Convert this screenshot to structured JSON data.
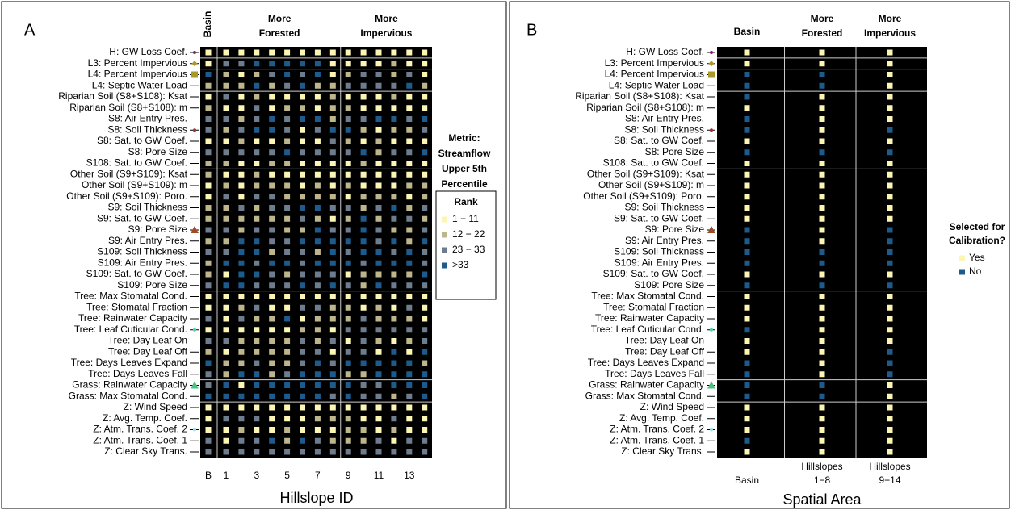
{
  "chart_data": [
    {
      "type": "heatmap",
      "panel": "A",
      "column_headers": [
        [
          "Basin"
        ],
        [
          "More",
          "Forested"
        ],
        [
          "More",
          "Impervious"
        ]
      ],
      "rows": [
        "H: GW Loss Coef.",
        "L3: Percent Impervious",
        "L4: Percent Impervious",
        "L4: Septic Water Load",
        "Riparian Soil (S8+S108): Ksat",
        "Riparian Soil (S8+S108): m",
        "S8: Air Entry Pres.",
        "S8: Soil Thickness",
        "S8: Sat. to GW Coef.",
        "S8: Pore Size",
        "S108: Sat. to GW Coef.",
        "Other Soil (S9+S109): Ksat",
        "Other Soil (S9+S109): m",
        "Other Soil (S9+S109): Poro.",
        "S9: Soil Thickness",
        "S9: Sat. to GW Coef.",
        "S9: Pore Size",
        "S9: Air Entry Pres.",
        "S109: Soil Thickness",
        "S109: Air Entry Pres.",
        "S109: Sat. to GW Coef.",
        "S109: Pore Size",
        "Tree: Max Stomatal Cond.",
        "Tree: Stomatal Fraction",
        "Tree: Rainwater Capacity",
        "Tree: Leaf Cuticular Cond.",
        "Tree: Day Leaf On",
        "Tree: Day Leaf Off",
        "Tree: Days Leaves Expand",
        "Tree: Days Leaves Fall",
        "Grass: Rainwater Capacity",
        "Grass: Max Stomatal Cond.",
        "Z: Wind Speed",
        "Z: Avg. Temp. Coef.",
        "Z: Atm. Trans. Coef. 2",
        "Z: Atm. Trans. Coef. 1",
        "Z: Clear Sky Trans."
      ],
      "categories": [
        [
          "B"
        ],
        [
          "1"
        ],
        null,
        [
          "3"
        ],
        null,
        [
          "5"
        ],
        null,
        [
          "7"
        ],
        null,
        [
          "9"
        ],
        null,
        [
          "11"
        ],
        null,
        [
          "13"
        ],
        null
      ],
      "x_label": "Hillslope ID",
      "legend_title": [
        "Metric:",
        "Streamflow",
        "Upper 5th",
        "Percentile"
      ],
      "legend_subtitle": "Rank",
      "classes": [
        {
          "name": "1 − 11",
          "color": "#fcf6b4"
        },
        {
          "name": "12 − 22",
          "color": "#bdb68c"
        },
        {
          "name": "23 − 33",
          "color": "#6d7d8e"
        },
        {
          "name": ">33",
          "color": "#1c5b8c"
        }
      ],
      "cells": [
        [
          0,
          0,
          0,
          0,
          0,
          0,
          0,
          0,
          0,
          0,
          0,
          0,
          0,
          0,
          0
        ],
        [
          0,
          2,
          2,
          3,
          3,
          3,
          3,
          3,
          0,
          0,
          0,
          0,
          1,
          0,
          0
        ],
        [
          3,
          1,
          0,
          1,
          2,
          3,
          2,
          3,
          0,
          1,
          2,
          2,
          1,
          2,
          0
        ],
        [
          1,
          1,
          1,
          3,
          1,
          2,
          3,
          1,
          1,
          2,
          2,
          2,
          2,
          3,
          1
        ],
        [
          0,
          2,
          0,
          1,
          0,
          0,
          0,
          0,
          1,
          0,
          0,
          0,
          1,
          0,
          0
        ],
        [
          1,
          0,
          0,
          2,
          0,
          1,
          1,
          0,
          1,
          1,
          0,
          0,
          0,
          0,
          0
        ],
        [
          2,
          2,
          1,
          2,
          3,
          2,
          3,
          3,
          1,
          2,
          2,
          3,
          3,
          2,
          3
        ],
        [
          2,
          1,
          2,
          3,
          3,
          2,
          0,
          2,
          3,
          3,
          1,
          0,
          1,
          1,
          2
        ],
        [
          0,
          0,
          1,
          0,
          0,
          1,
          0,
          0,
          2,
          1,
          0,
          1,
          0,
          0,
          0
        ],
        [
          2,
          2,
          2,
          2,
          2,
          3,
          2,
          2,
          2,
          2,
          3,
          1,
          2,
          2,
          3
        ],
        [
          1,
          1,
          0,
          0,
          1,
          1,
          0,
          0,
          0,
          0,
          1,
          0,
          0,
          0,
          0
        ],
        [
          1,
          0,
          0,
          1,
          0,
          0,
          0,
          0,
          0,
          0,
          0,
          0,
          0,
          0,
          0
        ],
        [
          0,
          1,
          0,
          1,
          1,
          1,
          0,
          1,
          0,
          1,
          0,
          0,
          0,
          1,
          1
        ],
        [
          0,
          2,
          0,
          2,
          2,
          1,
          1,
          1,
          1,
          0,
          1,
          1,
          1,
          0,
          1
        ],
        [
          1,
          1,
          2,
          1,
          2,
          2,
          3,
          3,
          2,
          2,
          1,
          2,
          3,
          1,
          2
        ],
        [
          1,
          1,
          1,
          1,
          1,
          1,
          2,
          1,
          0,
          1,
          3,
          1,
          2,
          2,
          1
        ],
        [
          2,
          2,
          1,
          2,
          2,
          1,
          1,
          3,
          2,
          2,
          3,
          2,
          1,
          1,
          2
        ],
        [
          1,
          1,
          3,
          3,
          2,
          2,
          3,
          3,
          3,
          3,
          3,
          2,
          3,
          1,
          3
        ],
        [
          2,
          2,
          3,
          3,
          1,
          2,
          2,
          1,
          3,
          2,
          3,
          3,
          2,
          3,
          2
        ],
        [
          1,
          3,
          3,
          2,
          3,
          3,
          2,
          3,
          3,
          3,
          2,
          3,
          3,
          3,
          2
        ],
        [
          1,
          0,
          3,
          3,
          2,
          1,
          2,
          2,
          2,
          0,
          1,
          1,
          1,
          1,
          3
        ],
        [
          2,
          3,
          3,
          2,
          2,
          2,
          3,
          2,
          3,
          2,
          1,
          3,
          2,
          2,
          2
        ],
        [
          0,
          0,
          0,
          0,
          0,
          0,
          0,
          0,
          0,
          0,
          0,
          0,
          0,
          0,
          0
        ],
        [
          0,
          0,
          1,
          2,
          0,
          0,
          2,
          2,
          1,
          1,
          0,
          1,
          0,
          2,
          0
        ],
        [
          2,
          0,
          2,
          1,
          1,
          3,
          0,
          1,
          1,
          1,
          2,
          1,
          1,
          1,
          0
        ],
        [
          0,
          0,
          0,
          0,
          0,
          0,
          1,
          1,
          0,
          2,
          2,
          2,
          2,
          2,
          2
        ],
        [
          2,
          2,
          1,
          1,
          1,
          1,
          2,
          1,
          2,
          0,
          2,
          1,
          0,
          1,
          2
        ],
        [
          1,
          0,
          1,
          1,
          1,
          1,
          2,
          2,
          0,
          2,
          2,
          0,
          3,
          0,
          3
        ],
        [
          3,
          1,
          1,
          2,
          1,
          1,
          2,
          3,
          2,
          3,
          3,
          3,
          3,
          3,
          1
        ],
        [
          2,
          1,
          3,
          3,
          1,
          2,
          3,
          3,
          3,
          1,
          1,
          3,
          3,
          3,
          3
        ],
        [
          2,
          3,
          0,
          3,
          3,
          3,
          3,
          3,
          3,
          3,
          2,
          2,
          3,
          3,
          3
        ],
        [
          3,
          3,
          3,
          3,
          3,
          3,
          3,
          3,
          2,
          3,
          2,
          2,
          1,
          2,
          3
        ],
        [
          0,
          0,
          0,
          0,
          0,
          0,
          0,
          0,
          0,
          0,
          0,
          0,
          0,
          0,
          0
        ],
        [
          0,
          2,
          2,
          2,
          0,
          0,
          0,
          1,
          1,
          1,
          0,
          0,
          2,
          0,
          0
        ],
        [
          0,
          0,
          1,
          0,
          0,
          1,
          0,
          0,
          0,
          1,
          1,
          0,
          1,
          0,
          0
        ],
        [
          2,
          0,
          2,
          2,
          3,
          1,
          3,
          2,
          1,
          1,
          1,
          2,
          0,
          2,
          2
        ],
        [
          2,
          2,
          2,
          2,
          2,
          2,
          2,
          2,
          2,
          2,
          2,
          2,
          2,
          2,
          2
        ]
      ]
    },
    {
      "type": "heatmap",
      "panel": "B",
      "column_headers": [
        [
          "Basin"
        ],
        [
          "More",
          "Forested"
        ],
        [
          "More",
          "Impervious"
        ]
      ],
      "rows": [
        "H: GW Loss Coef.",
        "L3: Percent Impervious",
        "L4: Percent Impervious",
        "L4: Septic Water Load",
        "Riparian Soil (S8+S108): Ksat",
        "Riparian Soil (S8+S108): m",
        "S8: Air Entry Pres.",
        "S8: Soil Thickness",
        "S8: Sat. to GW Coef.",
        "S8: Pore Size",
        "S108: Sat. to GW Coef.",
        "Other Soil (S9+S109): Ksat",
        "Other Soil (S9+S109): m",
        "Other Soil (S9+S109): Poro.",
        "S9: Soil Thickness",
        "S9: Sat. to GW Coef.",
        "S9: Pore Size",
        "S9: Air Entry Pres.",
        "S109: Soil Thickness",
        "S109: Air Entry Pres.",
        "S109: Sat. to GW Coef.",
        "S109: Pore Size",
        "Tree: Max Stomatal Cond.",
        "Tree: Stomatal Fraction",
        "Tree: Rainwater Capacity",
        "Tree: Leaf Cuticular Cond.",
        "Tree: Day Leaf On",
        "Tree: Day Leaf Off",
        "Tree: Days Leaves Expand",
        "Tree: Days Leaves Fall",
        "Grass: Rainwater Capacity",
        "Grass: Max Stomatal Cond.",
        "Z: Wind Speed",
        "Z: Avg. Temp. Coef.",
        "Z: Atm. Trans. Coef. 2",
        "Z: Atm. Trans. Coef. 1",
        "Z: Clear Sky Trans."
      ],
      "categories": [
        [
          "Basin"
        ],
        [
          "Hillslopes",
          "1−8"
        ],
        [
          "Hillslopes",
          "9−14"
        ]
      ],
      "x_label": "Spatial Area",
      "legend_title": [
        "Selected for",
        "Calibration?"
      ],
      "classes": [
        {
          "name": "Yes",
          "color": "#fcf6b4"
        },
        {
          "name": "No",
          "color": "#1c5b8c"
        }
      ],
      "cells": [
        [
          0,
          0,
          0
        ],
        [
          0,
          0,
          0
        ],
        [
          1,
          1,
          0
        ],
        [
          1,
          1,
          0
        ],
        [
          1,
          0,
          0
        ],
        [
          0,
          0,
          0
        ],
        [
          1,
          0,
          0
        ],
        [
          1,
          0,
          1
        ],
        [
          0,
          0,
          0
        ],
        [
          1,
          1,
          1
        ],
        [
          0,
          0,
          0
        ],
        [
          0,
          0,
          0
        ],
        [
          0,
          0,
          0
        ],
        [
          0,
          0,
          0
        ],
        [
          0,
          0,
          0
        ],
        [
          0,
          0,
          0
        ],
        [
          1,
          0,
          1
        ],
        [
          1,
          0,
          1
        ],
        [
          1,
          1,
          1
        ],
        [
          1,
          1,
          1
        ],
        [
          0,
          0,
          0
        ],
        [
          1,
          1,
          1
        ],
        [
          0,
          0,
          0
        ],
        [
          0,
          0,
          0
        ],
        [
          0,
          0,
          0
        ],
        [
          1,
          0,
          0
        ],
        [
          0,
          0,
          0
        ],
        [
          0,
          0,
          1
        ],
        [
          1,
          0,
          1
        ],
        [
          1,
          0,
          1
        ],
        [
          1,
          1,
          0
        ],
        [
          1,
          1,
          0
        ],
        [
          0,
          0,
          0
        ],
        [
          0,
          0,
          0
        ],
        [
          0,
          0,
          0
        ],
        [
          1,
          0,
          0
        ],
        [
          0,
          0,
          0
        ]
      ]
    }
  ]
}
